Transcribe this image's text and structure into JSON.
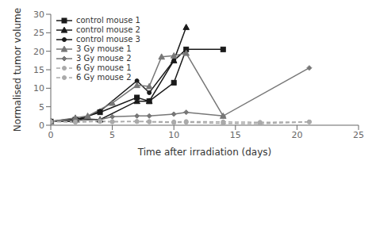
{
  "chart_data": {
    "type": "line",
    "xlabel": "Time after irradiation (days)",
    "ylabel": "Normalised tumor volume",
    "xlim": [
      0,
      25
    ],
    "ylim": [
      0,
      30
    ],
    "xticks": [
      0,
      5,
      10,
      15,
      20,
      25
    ],
    "yticks": [
      0,
      5,
      10,
      15,
      20,
      25,
      30
    ],
    "grid": false,
    "legend": "upper left",
    "series": [
      {
        "name": "control mouse 1",
        "color": "#1a1a1a",
        "line_style": "solid",
        "marker": "square",
        "x": [
          0,
          2,
          4,
          7,
          8,
          10,
          11,
          14
        ],
        "values": [
          1,
          1.5,
          3.5,
          7.5,
          6.5,
          11.5,
          20.5,
          20.5
        ]
      },
      {
        "name": "control mouse 2",
        "color": "#1a1a1a",
        "line_style": "solid",
        "marker": "triangle",
        "x": [
          0,
          2,
          4,
          7,
          8,
          10,
          11
        ],
        "values": [
          1,
          1.8,
          1.5,
          6.5,
          6.5,
          17.5,
          26.5
        ]
      },
      {
        "name": "control mouse 3",
        "color": "#1a1a1a",
        "line_style": "solid",
        "marker": "circle",
        "x": [
          0,
          2,
          4,
          7,
          8,
          10,
          11
        ],
        "values": [
          1,
          1.0,
          3.8,
          12.0,
          8.8,
          17.5,
          20.5
        ]
      },
      {
        "name": "3 Gy mouse 1",
        "color": "#777777",
        "line_style": "solid",
        "marker": "triangle",
        "x": [
          0,
          2,
          3,
          5,
          7,
          8,
          9,
          10,
          11,
          14
        ],
        "values": [
          1,
          2.0,
          2.5,
          6.0,
          10.8,
          10.5,
          18.5,
          18.8,
          19.5,
          2.5
        ]
      },
      {
        "name": "3 Gy mouse 2",
        "color": "#777777",
        "line_style": "solid",
        "marker": "diamond",
        "x": [
          0,
          2,
          4,
          5,
          7,
          8,
          10,
          11,
          14,
          21
        ],
        "values": [
          1,
          1.3,
          1.5,
          2.3,
          2.5,
          2.5,
          3.0,
          3.5,
          2.5,
          15.5
        ]
      },
      {
        "name": "6 Gy mouse 1",
        "color": "#aaaaaa",
        "line_style": "dashed",
        "marker": "circle",
        "x": [
          0,
          2,
          4,
          5,
          7,
          8,
          10,
          11,
          14,
          17,
          21
        ],
        "values": [
          1,
          0.9,
          1.0,
          0.9,
          1.0,
          1.0,
          0.9,
          1.0,
          0.9,
          0.8,
          0.9
        ]
      },
      {
        "name": "6 Gy mouse 2",
        "color": "#aaaaaa",
        "line_style": "dashed",
        "marker": "circle",
        "x": [
          0,
          2,
          4,
          5,
          7,
          8,
          10,
          11,
          14,
          17,
          21
        ],
        "values": [
          1,
          0.8,
          1.1,
          1.0,
          1.0,
          0.9,
          0.7,
          0.8,
          0.5,
          0.4,
          0.9
        ]
      }
    ]
  }
}
